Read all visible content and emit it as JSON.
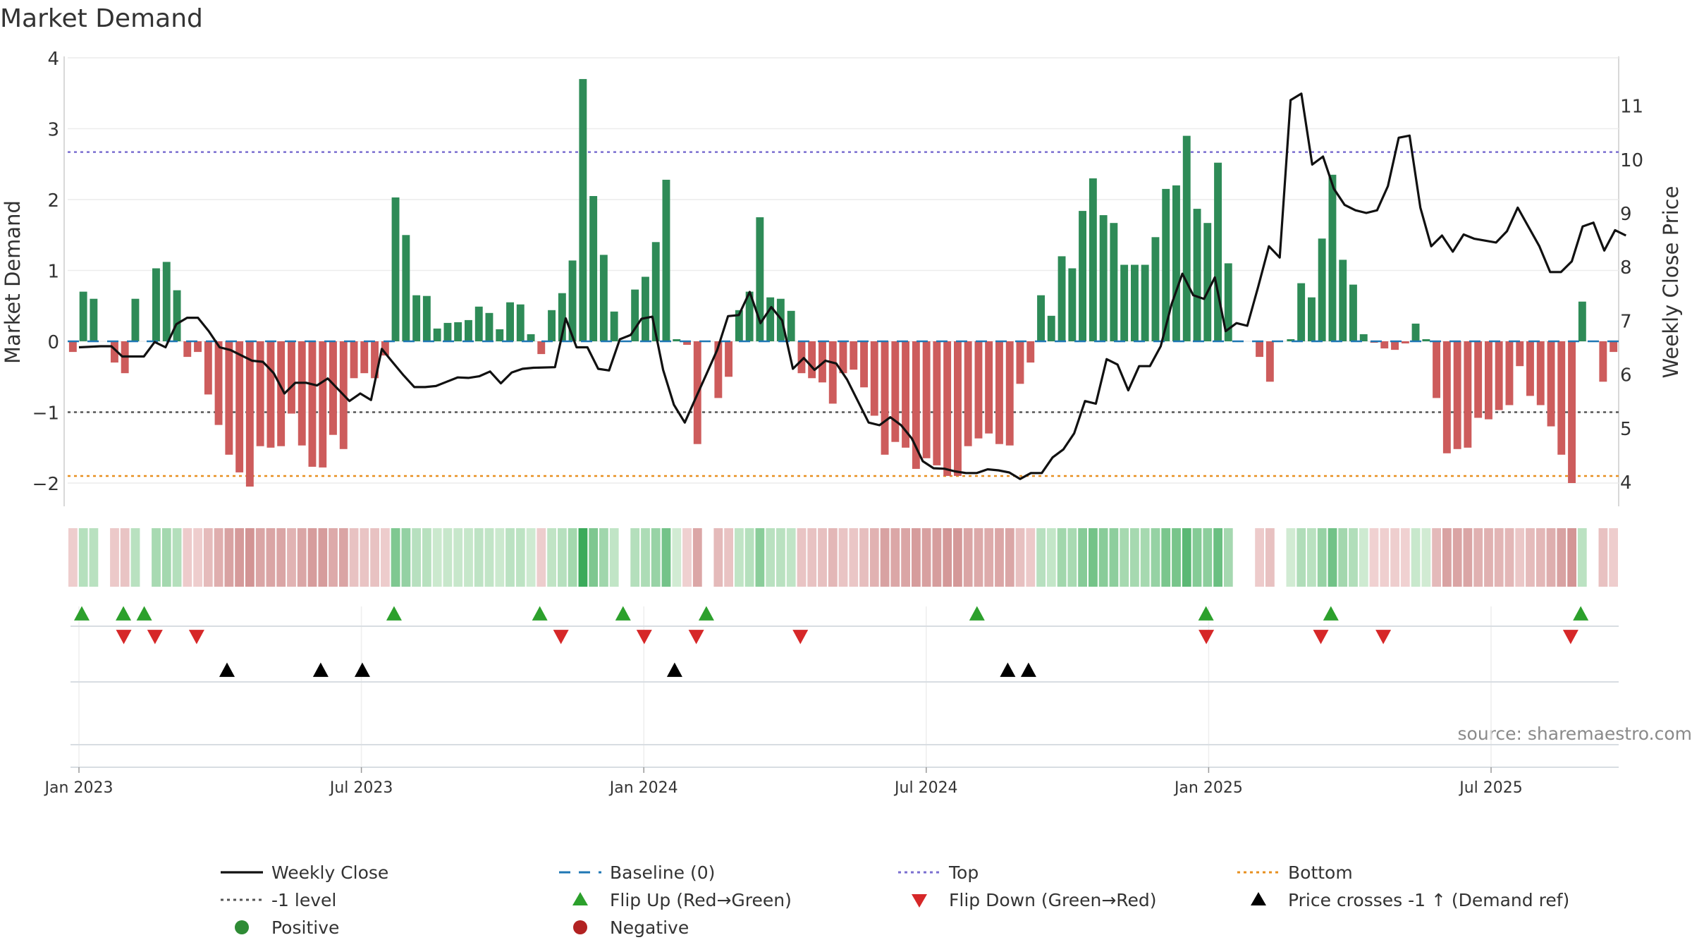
{
  "chart_data": {
    "type": "bar",
    "title": "Market Demand",
    "ylabel": "Market Demand",
    "y2label": "Weekly Close Price",
    "ylim": [
      -2.35,
      4.05
    ],
    "y2lim": [
      3.85,
      11.82
    ],
    "yticks": [
      "4",
      "3",
      "2",
      "1",
      "0",
      "−1",
      "−2"
    ],
    "y2ticks": [
      "11",
      "10",
      "9",
      "8",
      "7",
      "6",
      "5",
      "4"
    ],
    "xticks": [
      "Jan 2023",
      "Jul 2023",
      "Jan 2024",
      "Jul 2024",
      "Jan 2025",
      "Jul 2025"
    ],
    "levels": {
      "top": 2.67,
      "minus_one": -1.0,
      "bottom": -1.9,
      "baseline": 0
    },
    "source": "source: sharemaestro.com",
    "colors": {
      "positive": "#2e8b57",
      "negative": "#cd5c5c",
      "close": "#111111",
      "top": "#7b6fd0",
      "bottom": "#e89020",
      "minus_one": "#555555",
      "baseline": "#1f77b4",
      "flip_up": "#2ca02c",
      "flip_down": "#d62728",
      "cross": "#000000"
    },
    "demand": [
      -0.15,
      0.7,
      0.6,
      0.0,
      -0.3,
      -0.45,
      0.6,
      0.0,
      1.03,
      1.12,
      0.72,
      -0.22,
      -0.15,
      -0.75,
      -1.18,
      -1.6,
      -1.85,
      -2.05,
      -1.48,
      -1.5,
      -1.48,
      -1.02,
      -1.47,
      -1.77,
      -1.78,
      -1.32,
      -1.52,
      -0.52,
      -0.45,
      -0.52,
      -0.2,
      2.03,
      1.5,
      0.65,
      0.64,
      0.18,
      0.26,
      0.27,
      0.3,
      0.49,
      0.4,
      0.17,
      0.55,
      0.52,
      0.1,
      -0.18,
      0.44,
      0.68,
      1.14,
      3.7,
      2.05,
      1.22,
      0.42,
      0.0,
      0.73,
      0.91,
      1.4,
      2.28,
      0.03,
      -0.05,
      -1.45,
      0.0,
      -0.8,
      -0.5,
      0.44,
      0.7,
      1.75,
      0.62,
      0.6,
      0.43,
      -0.45,
      -0.52,
      -0.58,
      -0.88,
      -0.45,
      -0.4,
      -0.65,
      -1.05,
      -1.6,
      -1.42,
      -1.5,
      -1.8,
      -1.65,
      -1.75,
      -1.9,
      -1.9,
      -1.48,
      -1.37,
      -1.3,
      -1.45,
      -1.47,
      -0.6,
      -0.3,
      0.65,
      0.36,
      1.2,
      1.03,
      1.84,
      2.3,
      1.78,
      1.67,
      1.08,
      1.08,
      1.08,
      1.47,
      2.15,
      2.2,
      2.9,
      1.87,
      1.67,
      2.52,
      1.1,
      0.0,
      0.0,
      -0.22,
      -0.57,
      0.0,
      0.03,
      0.82,
      0.62,
      1.45,
      2.35,
      1.15,
      0.8,
      0.1,
      -0.02,
      -0.1,
      -0.12,
      -0.03,
      0.25,
      0.03,
      -0.8,
      -1.58,
      -1.52,
      -1.5,
      -1.08,
      -1.1,
      -0.97,
      -0.9,
      -0.35,
      -0.77,
      -0.9,
      -1.2,
      -1.6,
      -2.0,
      0.56,
      0.0,
      -0.57,
      -0.15
    ],
    "close": [
      [
        "2023-01-01",
        6.5
      ],
      [
        "2023-01-15",
        6.52
      ],
      [
        "2023-01-22",
        6.52
      ],
      [
        "2023-01-29",
        6.33
      ],
      [
        "2023-02-12",
        6.33
      ],
      [
        "2023-02-19",
        6.6
      ],
      [
        "2023-02-26",
        6.5
      ],
      [
        "2023-03-05",
        6.93
      ],
      [
        "2023-03-12",
        7.05
      ],
      [
        "2023-03-19",
        7.05
      ],
      [
        "2023-03-26",
        6.8
      ],
      [
        "2023-04-02",
        6.5
      ],
      [
        "2023-04-09",
        6.45
      ],
      [
        "2023-04-23",
        6.25
      ],
      [
        "2023-04-30",
        6.23
      ],
      [
        "2023-05-07",
        6.02
      ],
      [
        "2023-05-14",
        5.64
      ],
      [
        "2023-05-21",
        5.84
      ],
      [
        "2023-05-28",
        5.84
      ],
      [
        "2023-06-04",
        5.79
      ],
      [
        "2023-06-11",
        5.92
      ],
      [
        "2023-06-25",
        5.5
      ],
      [
        "2023-07-02",
        5.64
      ],
      [
        "2023-07-09",
        5.52
      ],
      [
        "2023-07-16",
        6.47
      ],
      [
        "2023-07-23",
        6.22
      ],
      [
        "2023-07-30",
        5.98
      ],
      [
        "2023-08-06",
        5.76
      ],
      [
        "2023-08-13",
        5.76
      ],
      [
        "2023-08-20",
        5.78
      ],
      [
        "2023-08-27",
        5.86
      ],
      [
        "2023-09-03",
        5.94
      ],
      [
        "2023-09-10",
        5.93
      ],
      [
        "2023-09-17",
        5.96
      ],
      [
        "2023-09-24",
        6.05
      ],
      [
        "2023-10-01",
        5.83
      ],
      [
        "2023-10-08",
        6.03
      ],
      [
        "2023-10-15",
        6.1
      ],
      [
        "2023-10-22",
        6.12
      ],
      [
        "2023-11-05",
        6.13
      ],
      [
        "2023-11-12",
        7.04
      ],
      [
        "2023-11-19",
        6.5
      ],
      [
        "2023-11-26",
        6.5
      ],
      [
        "2023-12-03",
        6.1
      ],
      [
        "2023-12-10",
        6.07
      ],
      [
        "2023-12-17",
        6.65
      ],
      [
        "2023-12-24",
        6.73
      ],
      [
        "2023-12-31",
        7.03
      ],
      [
        "2024-01-07",
        7.07
      ],
      [
        "2024-01-14",
        6.08
      ],
      [
        "2024-01-21",
        5.43
      ],
      [
        "2024-01-28",
        5.1
      ],
      [
        "2024-02-04",
        5.55
      ],
      [
        "2024-02-11",
        6.0
      ],
      [
        "2024-02-18",
        6.45
      ],
      [
        "2024-02-25",
        7.08
      ],
      [
        "2024-03-03",
        7.1
      ],
      [
        "2024-03-10",
        7.53
      ],
      [
        "2024-03-17",
        6.95
      ],
      [
        "2024-03-24",
        7.25
      ],
      [
        "2024-03-31",
        7.0
      ],
      [
        "2024-04-07",
        6.1
      ],
      [
        "2024-04-14",
        6.3
      ],
      [
        "2024-04-21",
        6.08
      ],
      [
        "2024-04-28",
        6.25
      ],
      [
        "2024-05-05",
        6.2
      ],
      [
        "2024-05-12",
        5.9
      ],
      [
        "2024-05-19",
        5.5
      ],
      [
        "2024-05-26",
        5.1
      ],
      [
        "2024-06-02",
        5.05
      ],
      [
        "2024-06-09",
        5.2
      ],
      [
        "2024-06-16",
        5.05
      ],
      [
        "2024-06-23",
        4.8
      ],
      [
        "2024-06-30",
        4.38
      ],
      [
        "2024-07-07",
        4.25
      ],
      [
        "2024-07-14",
        4.24
      ],
      [
        "2024-07-21",
        4.19
      ],
      [
        "2024-07-28",
        4.16
      ],
      [
        "2024-08-04",
        4.16
      ],
      [
        "2024-08-11",
        4.23
      ],
      [
        "2024-08-18",
        4.21
      ],
      [
        "2024-08-25",
        4.17
      ],
      [
        "2024-09-01",
        4.05
      ],
      [
        "2024-09-08",
        4.16
      ],
      [
        "2024-09-15",
        4.16
      ],
      [
        "2024-09-22",
        4.45
      ],
      [
        "2024-09-29",
        4.6
      ],
      [
        "2024-10-06",
        4.9
      ],
      [
        "2024-10-13",
        5.5
      ],
      [
        "2024-10-20",
        5.45
      ],
      [
        "2024-10-27",
        6.28
      ],
      [
        "2024-11-03",
        6.18
      ],
      [
        "2024-11-10",
        5.7
      ],
      [
        "2024-11-17",
        6.15
      ],
      [
        "2024-11-24",
        6.15
      ],
      [
        "2024-12-01",
        6.52
      ],
      [
        "2024-12-08",
        7.3
      ],
      [
        "2024-12-15",
        7.87
      ],
      [
        "2024-12-22",
        7.47
      ],
      [
        "2024-12-29",
        7.4
      ],
      [
        "2025-01-05",
        7.8
      ],
      [
        "2025-01-12",
        6.8
      ],
      [
        "2025-01-19",
        6.95
      ],
      [
        "2025-01-26",
        6.9
      ],
      [
        "2025-02-02",
        7.62
      ],
      [
        "2025-02-09",
        8.38
      ],
      [
        "2025-02-16",
        8.17
      ],
      [
        "2025-02-23",
        11.1
      ],
      [
        "2025-03-02",
        11.22
      ],
      [
        "2025-03-09",
        9.9
      ],
      [
        "2025-03-16",
        10.05
      ],
      [
        "2025-03-23",
        9.45
      ],
      [
        "2025-03-30",
        9.15
      ],
      [
        "2025-04-06",
        9.05
      ],
      [
        "2025-04-13",
        9.0
      ],
      [
        "2025-04-20",
        9.05
      ],
      [
        "2025-04-27",
        9.5
      ],
      [
        "2025-05-04",
        10.4
      ],
      [
        "2025-05-11",
        10.44
      ],
      [
        "2025-05-18",
        9.1
      ],
      [
        "2025-05-25",
        8.38
      ],
      [
        "2025-06-01",
        8.58
      ],
      [
        "2025-06-08",
        8.28
      ],
      [
        "2025-06-15",
        8.6
      ],
      [
        "2025-06-22",
        8.52
      ],
      [
        "2025-07-06",
        8.45
      ],
      [
        "2025-07-13",
        8.66
      ],
      [
        "2025-07-20",
        9.1
      ],
      [
        "2025-08-03",
        8.38
      ],
      [
        "2025-08-10",
        7.9
      ],
      [
        "2025-08-17",
        7.9
      ],
      [
        "2025-08-24",
        8.1
      ],
      [
        "2025-08-31",
        8.75
      ],
      [
        "2025-09-07",
        8.82
      ],
      [
        "2025-09-14",
        8.3
      ],
      [
        "2025-09-21",
        8.68
      ],
      [
        "2025-09-28",
        8.58
      ]
    ],
    "flip_up": [
      0,
      2,
      3,
      15,
      22,
      26,
      30,
      43,
      54,
      60,
      72
    ],
    "flip_down": [
      1,
      2.5,
      4.5,
      22,
      26,
      28.5,
      33.5,
      53,
      58.5,
      61.5,
      70.5
    ],
    "price_cross": [
      8.5,
      13,
      15,
      30,
      46,
      47
    ],
    "legend": [
      {
        "label": "Weekly Close",
        "kind": "line-solid",
        "color": "#111111"
      },
      {
        "label": "Baseline (0)",
        "kind": "line-dash",
        "color": "#1f77b4"
      },
      {
        "label": "Top",
        "kind": "line-dot",
        "color": "#7b6fd0"
      },
      {
        "label": "Bottom",
        "kind": "line-dot",
        "color": "#e89020"
      },
      {
        "label": "-1 level",
        "kind": "line-dot",
        "color": "#555555"
      },
      {
        "label": "Flip Up (Red→Green)",
        "kind": "tri-up",
        "color": "#2ca02c"
      },
      {
        "label": "Flip Down (Green→Red)",
        "kind": "tri-down",
        "color": "#d62728"
      },
      {
        "label": "Price crosses -1 ↑ (Demand ref)",
        "kind": "tri-up",
        "color": "#000000"
      },
      {
        "label": "Positive",
        "kind": "dot",
        "color": "#2e8b35"
      },
      {
        "label": "Negative",
        "kind": "dot",
        "color": "#b22222"
      }
    ]
  }
}
